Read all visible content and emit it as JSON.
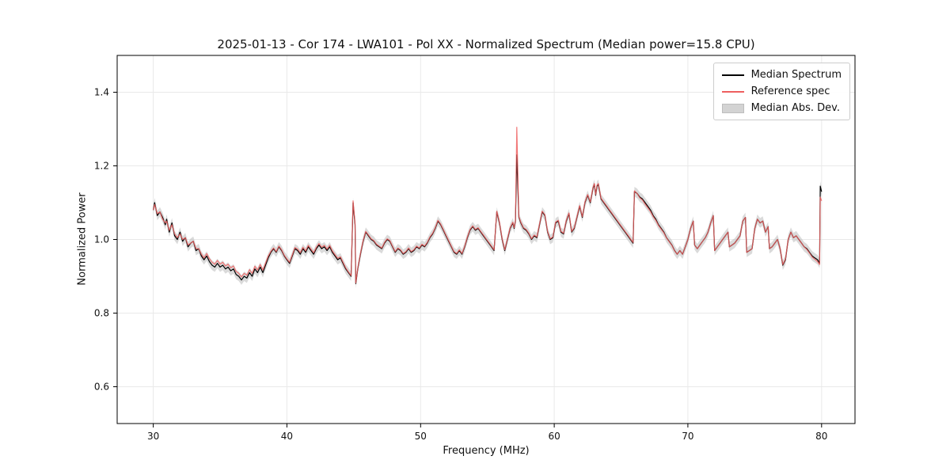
{
  "chart_data": {
    "type": "line",
    "title": "2025-01-13 - Cor 174 - LWA101 - Pol XX - Normalized Spectrum (Median power=15.8 CPU)",
    "xlabel": "Frequency (MHz)",
    "ylabel": "Normalized Power",
    "xlim": [
      27.3,
      82.5
    ],
    "ylim": [
      0.5,
      1.5
    ],
    "grid": true,
    "legend_position": "upper right",
    "xticks": [
      [
        30,
        "30"
      ],
      [
        40,
        "40"
      ],
      [
        50,
        "50"
      ],
      [
        60,
        "60"
      ],
      [
        70,
        "70"
      ],
      [
        80,
        "80"
      ]
    ],
    "yticks": [
      [
        0.6,
        "0.6"
      ],
      [
        0.8,
        "0.8"
      ],
      [
        1.0,
        "1.0"
      ],
      [
        1.2,
        "1.2"
      ],
      [
        1.4,
        "1.4"
      ]
    ],
    "series_meta": [
      {
        "name": "Median Spectrum",
        "kind": "line",
        "color": "#000000"
      },
      {
        "name": "Reference spec",
        "kind": "line",
        "color": "#ee5f5f"
      },
      {
        "name": "Median Abs. Dev.",
        "kind": "band",
        "color": "#bcbcbc",
        "halfwidth": 0.013
      }
    ],
    "points_format": [
      "frequency_mhz",
      "median_spectrum",
      "reference_spec"
    ],
    "points": [
      [
        30.0,
        1.08,
        1.08
      ],
      [
        30.1,
        1.1,
        1.095
      ],
      [
        30.3,
        1.065,
        1.07
      ],
      [
        30.5,
        1.075,
        1.075
      ],
      [
        30.7,
        1.06,
        1.055
      ],
      [
        30.9,
        1.04,
        1.045
      ],
      [
        31.0,
        1.055,
        1.05
      ],
      [
        31.2,
        1.02,
        1.025
      ],
      [
        31.4,
        1.045,
        1.04
      ],
      [
        31.6,
        1.01,
        1.015
      ],
      [
        31.8,
        1.0,
        1.005
      ],
      [
        32.0,
        1.02,
        1.015
      ],
      [
        32.2,
        0.995,
        1.0
      ],
      [
        32.4,
        1.005,
        1.005
      ],
      [
        32.6,
        0.98,
        0.985
      ],
      [
        32.8,
        0.99,
        0.99
      ],
      [
        33.0,
        0.995,
        0.995
      ],
      [
        33.2,
        0.97,
        0.975
      ],
      [
        33.4,
        0.975,
        0.975
      ],
      [
        33.6,
        0.955,
        0.96
      ],
      [
        33.8,
        0.945,
        0.95
      ],
      [
        34.0,
        0.955,
        0.962
      ],
      [
        34.2,
        0.94,
        0.948
      ],
      [
        34.4,
        0.93,
        0.938
      ],
      [
        34.6,
        0.925,
        0.933
      ],
      [
        34.8,
        0.935,
        0.943
      ],
      [
        35.0,
        0.925,
        0.933
      ],
      [
        35.2,
        0.93,
        0.938
      ],
      [
        35.4,
        0.92,
        0.928
      ],
      [
        35.6,
        0.925,
        0.933
      ],
      [
        35.8,
        0.915,
        0.923
      ],
      [
        36.0,
        0.92,
        0.928
      ],
      [
        36.2,
        0.905,
        0.913
      ],
      [
        36.4,
        0.9,
        0.908
      ],
      [
        36.6,
        0.89,
        0.898
      ],
      [
        36.8,
        0.9,
        0.908
      ],
      [
        37.0,
        0.895,
        0.903
      ],
      [
        37.2,
        0.91,
        0.918
      ],
      [
        37.4,
        0.9,
        0.908
      ],
      [
        37.6,
        0.92,
        0.927
      ],
      [
        37.8,
        0.91,
        0.917
      ],
      [
        38.0,
        0.925,
        0.932
      ],
      [
        38.2,
        0.91,
        0.917
      ],
      [
        38.4,
        0.93,
        0.936
      ],
      [
        38.6,
        0.95,
        0.955
      ],
      [
        38.8,
        0.965,
        0.968
      ],
      [
        39.0,
        0.975,
        0.977
      ],
      [
        39.2,
        0.965,
        0.967
      ],
      [
        39.4,
        0.98,
        0.982
      ],
      [
        39.6,
        0.97,
        0.972
      ],
      [
        39.8,
        0.955,
        0.957
      ],
      [
        40.0,
        0.945,
        0.947
      ],
      [
        40.2,
        0.935,
        0.938
      ],
      [
        40.4,
        0.955,
        0.958
      ],
      [
        40.6,
        0.975,
        0.978
      ],
      [
        40.8,
        0.97,
        0.974
      ],
      [
        41.0,
        0.96,
        0.964
      ],
      [
        41.2,
        0.975,
        0.979
      ],
      [
        41.4,
        0.965,
        0.969
      ],
      [
        41.6,
        0.98,
        0.984
      ],
      [
        41.8,
        0.97,
        0.974
      ],
      [
        42.0,
        0.96,
        0.964
      ],
      [
        42.2,
        0.975,
        0.979
      ],
      [
        42.4,
        0.985,
        0.989
      ],
      [
        42.6,
        0.975,
        0.979
      ],
      [
        42.8,
        0.98,
        0.984
      ],
      [
        43.0,
        0.97,
        0.974
      ],
      [
        43.2,
        0.98,
        0.984
      ],
      [
        43.4,
        0.965,
        0.969
      ],
      [
        43.6,
        0.955,
        0.959
      ],
      [
        43.8,
        0.945,
        0.949
      ],
      [
        44.0,
        0.95,
        0.953
      ],
      [
        44.2,
        0.935,
        0.938
      ],
      [
        44.4,
        0.92,
        0.923
      ],
      [
        44.6,
        0.91,
        0.912
      ],
      [
        44.8,
        0.9,
        0.902
      ],
      [
        44.95,
        1.1,
        1.105
      ],
      [
        45.1,
        1.04,
        1.045
      ],
      [
        45.15,
        0.88,
        0.882
      ],
      [
        45.3,
        0.92,
        0.922
      ],
      [
        45.5,
        0.96,
        0.962
      ],
      [
        45.7,
        0.995,
        0.997
      ],
      [
        45.9,
        1.02,
        1.022
      ],
      [
        46.1,
        1.01,
        1.012
      ],
      [
        46.3,
        1.0,
        1.002
      ],
      [
        46.5,
        0.995,
        0.997
      ],
      [
        46.7,
        0.985,
        0.987
      ],
      [
        46.9,
        0.98,
        0.982
      ],
      [
        47.1,
        0.975,
        0.977
      ],
      [
        47.3,
        0.99,
        0.992
      ],
      [
        47.5,
        1.0,
        1.002
      ],
      [
        47.7,
        0.995,
        0.997
      ],
      [
        47.9,
        0.98,
        0.982
      ],
      [
        48.1,
        0.965,
        0.967
      ],
      [
        48.3,
        0.975,
        0.977
      ],
      [
        48.5,
        0.97,
        0.972
      ],
      [
        48.7,
        0.96,
        0.962
      ],
      [
        48.9,
        0.965,
        0.967
      ],
      [
        49.1,
        0.975,
        0.977
      ],
      [
        49.3,
        0.965,
        0.967
      ],
      [
        49.5,
        0.97,
        0.972
      ],
      [
        49.7,
        0.98,
        0.982
      ],
      [
        49.9,
        0.975,
        0.977
      ],
      [
        50.1,
        0.985,
        0.987
      ],
      [
        50.3,
        0.98,
        0.982
      ],
      [
        50.5,
        0.99,
        0.992
      ],
      [
        50.7,
        1.005,
        1.007
      ],
      [
        50.9,
        1.015,
        1.017
      ],
      [
        51.1,
        1.03,
        1.032
      ],
      [
        51.3,
        1.05,
        1.052
      ],
      [
        51.5,
        1.04,
        1.042
      ],
      [
        51.7,
        1.025,
        1.027
      ],
      [
        51.9,
        1.01,
        1.012
      ],
      [
        52.1,
        0.995,
        0.997
      ],
      [
        52.3,
        0.98,
        0.982
      ],
      [
        52.5,
        0.965,
        0.967
      ],
      [
        52.7,
        0.96,
        0.962
      ],
      [
        52.9,
        0.97,
        0.972
      ],
      [
        53.1,
        0.96,
        0.962
      ],
      [
        53.3,
        0.98,
        0.982
      ],
      [
        53.5,
        1.005,
        1.007
      ],
      [
        53.7,
        1.025,
        1.027
      ],
      [
        53.9,
        1.035,
        1.037
      ],
      [
        54.1,
        1.025,
        1.027
      ],
      [
        54.3,
        1.03,
        1.032
      ],
      [
        54.5,
        1.02,
        1.022
      ],
      [
        54.7,
        1.01,
        1.012
      ],
      [
        54.9,
        1.0,
        1.002
      ],
      [
        55.1,
        0.99,
        0.992
      ],
      [
        55.3,
        0.98,
        0.982
      ],
      [
        55.5,
        0.97,
        0.972
      ],
      [
        55.7,
        1.075,
        1.077
      ],
      [
        55.9,
        1.045,
        1.047
      ],
      [
        56.1,
        1.0,
        1.002
      ],
      [
        56.3,
        0.97,
        0.972
      ],
      [
        56.5,
        1.0,
        1.002
      ],
      [
        56.7,
        1.03,
        1.032
      ],
      [
        56.9,
        1.045,
        1.047
      ],
      [
        57.0,
        1.03,
        1.032
      ],
      [
        57.1,
        1.05,
        1.052
      ],
      [
        57.2,
        1.23,
        1.305
      ],
      [
        57.35,
        1.06,
        1.062
      ],
      [
        57.5,
        1.045,
        1.047
      ],
      [
        57.7,
        1.03,
        1.032
      ],
      [
        57.9,
        1.025,
        1.027
      ],
      [
        58.1,
        1.015,
        1.017
      ],
      [
        58.3,
        1.0,
        1.002
      ],
      [
        58.5,
        1.01,
        1.012
      ],
      [
        58.7,
        1.005,
        1.007
      ],
      [
        58.9,
        1.04,
        1.042
      ],
      [
        59.1,
        1.075,
        1.077
      ],
      [
        59.3,
        1.065,
        1.067
      ],
      [
        59.5,
        1.02,
        1.022
      ],
      [
        59.7,
        1.0,
        1.002
      ],
      [
        59.9,
        1.005,
        1.007
      ],
      [
        60.1,
        1.045,
        1.047
      ],
      [
        60.3,
        1.05,
        1.052
      ],
      [
        60.5,
        1.02,
        1.022
      ],
      [
        60.7,
        1.015,
        1.017
      ],
      [
        60.9,
        1.05,
        1.052
      ],
      [
        61.1,
        1.07,
        1.072
      ],
      [
        61.3,
        1.02,
        1.022
      ],
      [
        61.5,
        1.03,
        1.032
      ],
      [
        61.7,
        1.06,
        1.062
      ],
      [
        61.9,
        1.09,
        1.092
      ],
      [
        62.1,
        1.06,
        1.062
      ],
      [
        62.3,
        1.1,
        1.102
      ],
      [
        62.5,
        1.12,
        1.122
      ],
      [
        62.7,
        1.1,
        1.102
      ],
      [
        62.9,
        1.14,
        1.142
      ],
      [
        63.0,
        1.15,
        1.152
      ],
      [
        63.1,
        1.12,
        1.122
      ],
      [
        63.2,
        1.145,
        1.147
      ],
      [
        63.3,
        1.15,
        1.152
      ],
      [
        63.5,
        1.11,
        1.112
      ],
      [
        63.7,
        1.1,
        1.102
      ],
      [
        63.9,
        1.09,
        1.092
      ],
      [
        64.1,
        1.08,
        1.082
      ],
      [
        64.3,
        1.07,
        1.072
      ],
      [
        64.5,
        1.06,
        1.062
      ],
      [
        64.7,
        1.05,
        1.052
      ],
      [
        64.9,
        1.04,
        1.042
      ],
      [
        65.1,
        1.03,
        1.032
      ],
      [
        65.3,
        1.02,
        1.022
      ],
      [
        65.5,
        1.01,
        1.012
      ],
      [
        65.7,
        1.0,
        1.002
      ],
      [
        65.9,
        0.99,
        0.992
      ],
      [
        66.0,
        1.13,
        1.132
      ],
      [
        66.2,
        1.125,
        1.125
      ],
      [
        66.4,
        1.115,
        1.113
      ],
      [
        66.6,
        1.11,
        1.107
      ],
      [
        66.8,
        1.1,
        1.096
      ],
      [
        67.0,
        1.09,
        1.086
      ],
      [
        67.2,
        1.08,
        1.076
      ],
      [
        67.4,
        1.065,
        1.062
      ],
      [
        67.6,
        1.055,
        1.052
      ],
      [
        67.8,
        1.04,
        1.038
      ],
      [
        68.0,
        1.03,
        1.028
      ],
      [
        68.2,
        1.02,
        1.018
      ],
      [
        68.4,
        1.005,
        1.004
      ],
      [
        68.6,
        0.995,
        0.994
      ],
      [
        68.8,
        0.985,
        0.984
      ],
      [
        69.0,
        0.97,
        0.969
      ],
      [
        69.2,
        0.96,
        0.96
      ],
      [
        69.4,
        0.97,
        0.97
      ],
      [
        69.6,
        0.96,
        0.96
      ],
      [
        69.8,
        0.98,
        0.98
      ],
      [
        70.0,
        1.0,
        1.0
      ],
      [
        70.2,
        1.03,
        1.03
      ],
      [
        70.4,
        1.05,
        1.05
      ],
      [
        70.5,
        0.985,
        0.985
      ],
      [
        70.7,
        0.975,
        0.975
      ],
      [
        70.9,
        0.985,
        0.985
      ],
      [
        71.1,
        0.995,
        0.995
      ],
      [
        71.3,
        1.005,
        1.005
      ],
      [
        71.5,
        1.02,
        1.02
      ],
      [
        71.7,
        1.045,
        1.045
      ],
      [
        71.9,
        1.065,
        1.065
      ],
      [
        72.0,
        0.97,
        0.97
      ],
      [
        72.2,
        0.98,
        0.98
      ],
      [
        72.4,
        0.99,
        0.99
      ],
      [
        72.6,
        1.0,
        1.0
      ],
      [
        72.8,
        1.01,
        1.01
      ],
      [
        73.0,
        1.02,
        1.02
      ],
      [
        73.1,
        0.98,
        0.98
      ],
      [
        73.3,
        0.985,
        0.985
      ],
      [
        73.5,
        0.99,
        0.99
      ],
      [
        73.7,
        1.0,
        1.0
      ],
      [
        73.9,
        1.01,
        1.01
      ],
      [
        74.1,
        1.05,
        1.05
      ],
      [
        74.3,
        1.06,
        1.06
      ],
      [
        74.4,
        0.965,
        0.965
      ],
      [
        74.6,
        0.97,
        0.97
      ],
      [
        74.8,
        0.975,
        0.975
      ],
      [
        75.0,
        1.03,
        1.03
      ],
      [
        75.2,
        1.055,
        1.055
      ],
      [
        75.4,
        1.045,
        1.045
      ],
      [
        75.6,
        1.05,
        1.05
      ],
      [
        75.8,
        1.02,
        1.02
      ],
      [
        76.0,
        1.035,
        1.035
      ],
      [
        76.1,
        0.975,
        0.975
      ],
      [
        76.3,
        0.98,
        0.98
      ],
      [
        76.5,
        0.99,
        0.99
      ],
      [
        76.7,
        1.0,
        1.0
      ],
      [
        76.9,
        0.975,
        0.975
      ],
      [
        77.1,
        0.93,
        0.932
      ],
      [
        77.3,
        0.945,
        0.947
      ],
      [
        77.5,
        1.0,
        1.0
      ],
      [
        77.7,
        1.02,
        1.02
      ],
      [
        77.9,
        1.005,
        1.005
      ],
      [
        78.1,
        1.01,
        1.01
      ],
      [
        78.3,
        1.0,
        1.0
      ],
      [
        78.5,
        0.99,
        0.99
      ],
      [
        78.7,
        0.98,
        0.98
      ],
      [
        78.9,
        0.975,
        0.973
      ],
      [
        79.1,
        0.965,
        0.963
      ],
      [
        79.3,
        0.955,
        0.952
      ],
      [
        79.5,
        0.95,
        0.946
      ],
      [
        79.7,
        0.945,
        0.94
      ],
      [
        79.85,
        0.935,
        0.932
      ],
      [
        79.9,
        1.145,
        1.115
      ],
      [
        80.0,
        1.13,
        1.105
      ]
    ]
  }
}
